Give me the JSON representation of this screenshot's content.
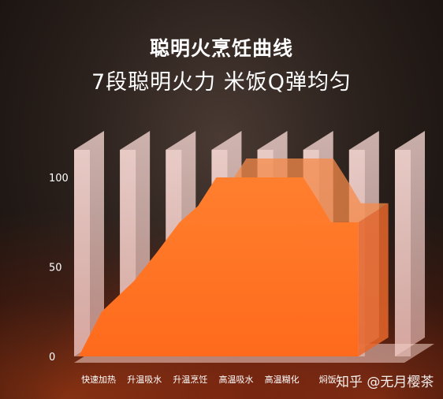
{
  "title": "聪明火烹饪曲线",
  "subtitle": "7段聪明火力 米饭Q弹均匀",
  "watermark": "知乎 @无月樱茶",
  "colors": {
    "background": "#2b211d",
    "area_fill": "#ff7a2a",
    "area_top": "#f07030",
    "pillar_face": "#f8dcd6",
    "text": "#ffffff"
  },
  "chart_data": {
    "type": "area",
    "title": "聪明火烹饪曲线",
    "subtitle": "7段聪明火力 米饭Q弹均匀",
    "categories": [
      "快速加热",
      "升温吸水",
      "升温烹饪",
      "高温吸水",
      "高温糊化",
      "焖饭",
      ""
    ],
    "yticks": [
      0,
      50,
      100
    ],
    "ylim": [
      0,
      120
    ],
    "series": [
      {
        "x": [
          0,
          0.5,
          1.2,
          1.7,
          2.2,
          2.6,
          3.0,
          4.9,
          5.2,
          5.5,
          6.1
        ],
        "y": [
          0,
          25,
          42,
          58,
          75,
          84,
          100,
          100,
          88,
          75,
          75
        ]
      }
    ],
    "grid": false,
    "legend": "none"
  }
}
